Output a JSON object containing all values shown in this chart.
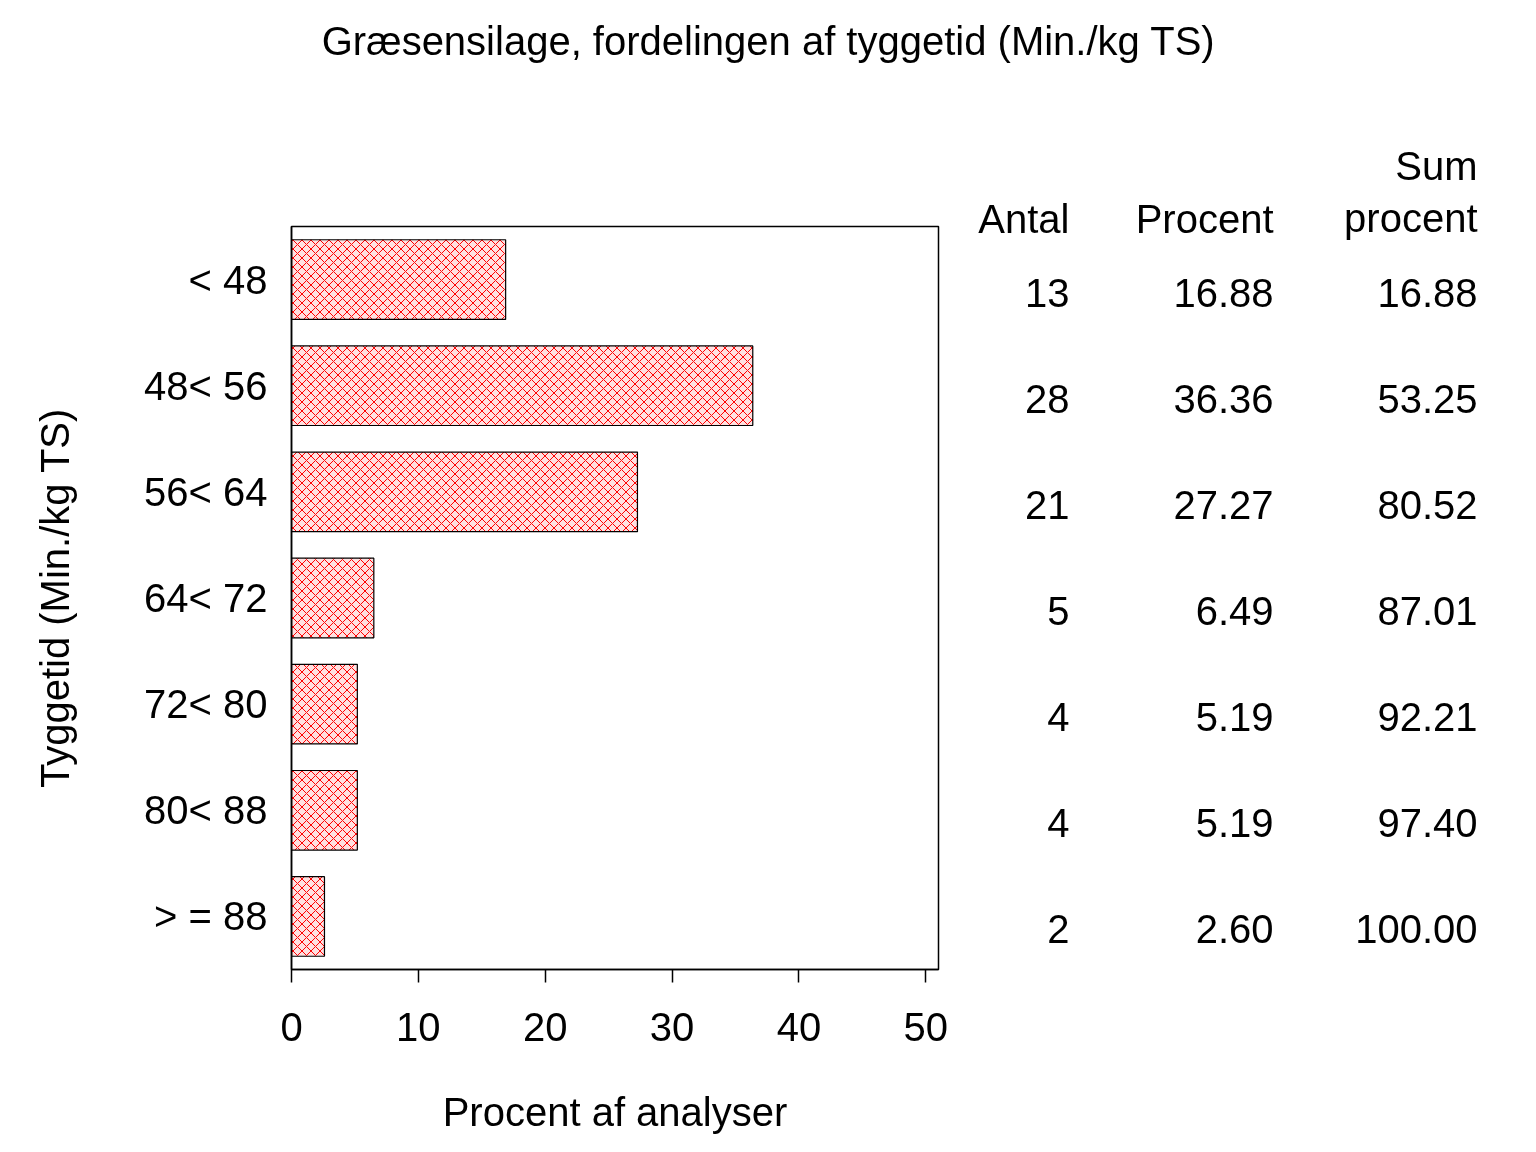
{
  "chart_data": {
    "type": "bar",
    "orientation": "horizontal",
    "title": "Græsensilage, fordelingen af tyggetid (Min./kg TS)",
    "xlabel": "Procent af analyser",
    "ylabel": "Tyggetid (Min./kg TS)",
    "categories": [
      "< 48",
      "48< 56",
      "56< 64",
      "64< 72",
      "72< 80",
      "80< 88",
      "> = 88"
    ],
    "values": [
      16.88,
      36.36,
      27.27,
      6.49,
      5.19,
      5.19,
      2.6
    ],
    "value_labels": [
      "16.88",
      "36.36",
      "27.27",
      "6.49",
      "5.19",
      "5.19",
      "2.60"
    ],
    "color": "#ff0000",
    "xlim": [
      0,
      51
    ],
    "xticks": [
      0,
      10,
      20,
      30,
      40,
      50
    ],
    "grid": false,
    "annotations": [
      "Antal",
      "Procent",
      "Sum procent",
      "13",
      "16.88",
      "28",
      "53.25",
      "21",
      "80.52",
      "5",
      "87.01",
      "4",
      "92.21",
      "4",
      "97.40",
      "2",
      "100.00"
    ]
  }
}
